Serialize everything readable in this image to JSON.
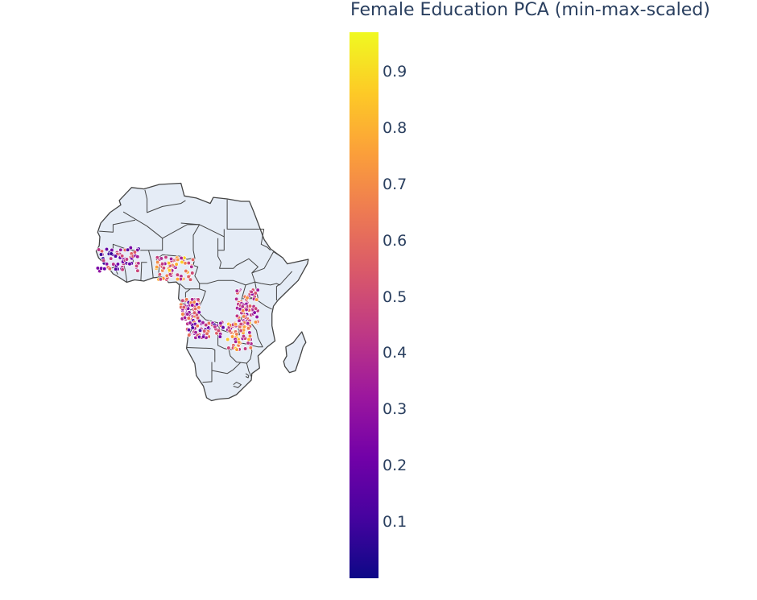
{
  "chart_data": {
    "type": "scatter_geo",
    "region": "Africa",
    "colorbar": {
      "title": "Female Education PCA (min-max-scaled)",
      "colorscale": "plasma",
      "range": [
        0,
        0.97
      ],
      "ticks": [
        0.1,
        0.2,
        0.3,
        0.4,
        0.5,
        0.6,
        0.7,
        0.8,
        0.9
      ],
      "tick_labels": [
        "0.1",
        "0.2",
        "0.3",
        "0.4",
        "0.5",
        "0.6",
        "0.7",
        "0.8",
        "0.9"
      ]
    },
    "point_clusters": [
      {
        "lon_range": [
          -17,
          -3
        ],
        "lat_range": [
          8,
          16
        ],
        "value_mean": 0.33
      },
      {
        "lon_range": [
          2,
          14
        ],
        "lat_range": [
          5,
          13
        ],
        "value_mean": 0.6
      },
      {
        "lon_range": [
          10,
          16
        ],
        "lat_range": [
          -8,
          -1
        ],
        "value_mean": 0.45
      },
      {
        "lon_range": [
          12,
          24
        ],
        "lat_range": [
          -14,
          -8
        ],
        "value_mean": 0.38
      },
      {
        "lon_range": [
          28,
          35
        ],
        "lat_range": [
          -9,
          2
        ],
        "value_mean": 0.45
      },
      {
        "lon_range": [
          25,
          33
        ],
        "lat_range": [
          -18,
          -9
        ],
        "value_mean": 0.6
      }
    ]
  }
}
